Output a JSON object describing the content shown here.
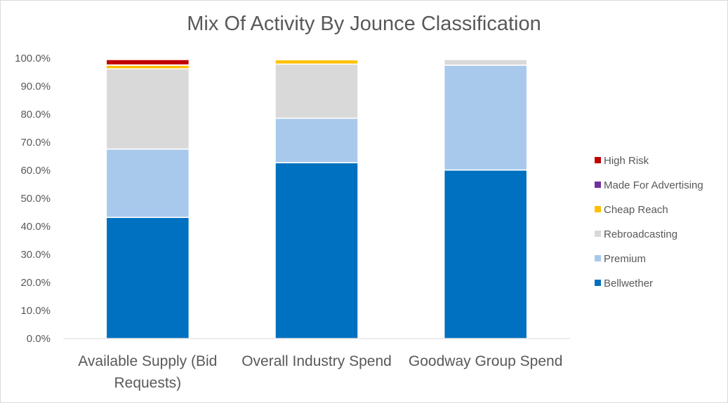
{
  "chart_data": {
    "type": "bar",
    "stacked": true,
    "title": "Mix Of Activity By Jounce Classification",
    "categories": [
      "Available Supply (Bid Requests)",
      "Overall Industry Spend",
      "Goodway Group Spend"
    ],
    "category_lines": [
      [
        "Available Supply (Bid",
        "Requests)"
      ],
      [
        "Overall Industry Spend"
      ],
      [
        "Goodway Group Spend"
      ]
    ],
    "y_ticks": [
      "0.0%",
      "10.0%",
      "20.0%",
      "30.0%",
      "40.0%",
      "50.0%",
      "60.0%",
      "70.0%",
      "80.0%",
      "90.0%",
      "100.0%"
    ],
    "ylim": [
      0,
      100
    ],
    "grid": false,
    "legend_position": "right",
    "series": [
      {
        "name": "Bellwether",
        "color": "#0070c0",
        "values": [
          43.2,
          62.7,
          60.1
        ]
      },
      {
        "name": "Premium",
        "color": "#a9c9ec",
        "values": [
          24.4,
          15.9,
          37.4
        ]
      },
      {
        "name": "Rebroadcasting",
        "color": "#d9d9d9",
        "values": [
          28.6,
          19.3,
          2.0
        ]
      },
      {
        "name": "Cheap Reach",
        "color": "#ffc000",
        "values": [
          1.3,
          1.5,
          0.0
        ]
      },
      {
        "name": "Made For Advertising",
        "color": "#7030a0",
        "values": [
          0.1,
          0.0,
          0.0
        ]
      },
      {
        "name": "High Risk",
        "color": "#c00000",
        "values": [
          1.9,
          0.0,
          0.0
        ]
      }
    ]
  }
}
